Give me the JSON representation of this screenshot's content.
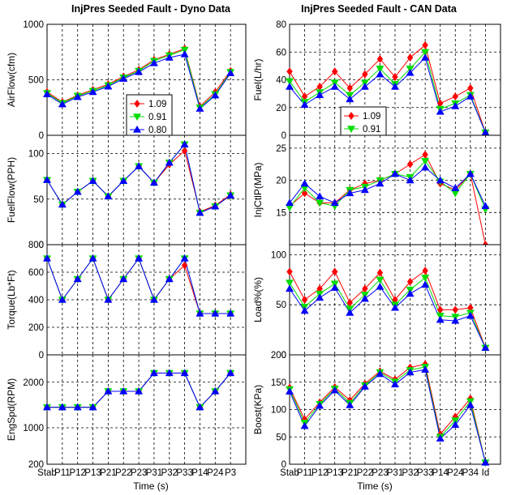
{
  "colors": {
    "red": "#ff0000",
    "green": "#00dd00",
    "blue": "#0000ff"
  },
  "chart_data": [
    {
      "type": "line",
      "id": "left-airflow",
      "title": "InjPres Seeded Fault - Dyno Data",
      "ylabel": "AirFlow(cfm)",
      "ylim": [
        0,
        1000
      ],
      "yticks": [
        "0",
        "500",
        "1000"
      ],
      "xticks": [],
      "xlabel": "",
      "grid": true,
      "n": 14,
      "legend": {
        "position": "middle-right",
        "entries": [
          "1.09",
          "0.91",
          "0.80"
        ]
      },
      "series": [
        {
          "name": "1.09",
          "marker": "diamond",
          "color": "#ff0000",
          "values": [
            390,
            300,
            360,
            410,
            460,
            530,
            590,
            680,
            730,
            780,
            260,
            390,
            580
          ]
        },
        {
          "name": "0.91",
          "marker": "triangle-down",
          "color": "#00dd00",
          "values": [
            380,
            290,
            355,
            400,
            450,
            520,
            580,
            670,
            720,
            770,
            250,
            370,
            570
          ]
        },
        {
          "name": "0.80",
          "marker": "triangle-up",
          "color": "#0000ff",
          "values": [
            370,
            280,
            345,
            390,
            440,
            510,
            570,
            650,
            700,
            730,
            240,
            360,
            560
          ]
        }
      ]
    },
    {
      "type": "line",
      "id": "left-fuelflow",
      "ylabel": "FuelFlow(PPH)",
      "ylim": [
        0,
        120
      ],
      "yticks": [
        "0",
        "50",
        "100"
      ],
      "xticks": [],
      "grid": true,
      "n": 14,
      "series": [
        {
          "name": "1.09",
          "marker": "diamond",
          "color": "#ff0000",
          "values": [
            71,
            44,
            58,
            70,
            53,
            70,
            86,
            68,
            88,
            103,
            36,
            43,
            55
          ]
        },
        {
          "name": "0.91",
          "marker": "triangle-down",
          "color": "#00dd00",
          "values": [
            71,
            44,
            58,
            70,
            53,
            70,
            86,
            68,
            90,
            110,
            35,
            42,
            54
          ]
        },
        {
          "name": "0.80",
          "marker": "triangle-up",
          "color": "#0000ff",
          "values": [
            71,
            44,
            58,
            70,
            53,
            70,
            86,
            68,
            90,
            110,
            35,
            42,
            54
          ]
        }
      ]
    },
    {
      "type": "line",
      "id": "left-torque",
      "ylabel": "Torque(Lb*Ft)",
      "ylim": [
        0,
        800
      ],
      "yticks": [
        "0",
        "200",
        "400",
        "600",
        "800"
      ],
      "xticks": [],
      "grid": true,
      "n": 14,
      "series": [
        {
          "name": "1.09",
          "marker": "diamond",
          "color": "#ff0000",
          "values": [
            700,
            400,
            550,
            700,
            400,
            550,
            700,
            400,
            550,
            650,
            300,
            300,
            300
          ]
        },
        {
          "name": "0.91",
          "marker": "triangle-down",
          "color": "#00dd00",
          "values": [
            700,
            400,
            550,
            700,
            400,
            550,
            700,
            400,
            550,
            700,
            300,
            300,
            300
          ]
        },
        {
          "name": "0.80",
          "marker": "triangle-up",
          "color": "#0000ff",
          "values": [
            700,
            400,
            550,
            700,
            400,
            550,
            700,
            400,
            550,
            700,
            300,
            300,
            300
          ]
        }
      ]
    },
    {
      "type": "line",
      "id": "left-engspd",
      "ylabel": "EngSpd(RPM)",
      "ylim": [
        200,
        2600
      ],
      "yticks": [
        "200",
        "1000",
        "2000"
      ],
      "xlabel": "Time (s)",
      "xticks": [
        "Stab",
        "P11",
        "P12",
        "P13",
        "P21",
        "P22",
        "P23",
        "P31",
        "P32",
        "P33",
        "P14",
        "P24",
        "P3"
      ],
      "grid": true,
      "n": 14,
      "series": [
        {
          "name": "1.09",
          "marker": "diamond",
          "color": "#ff0000",
          "values": [
            1450,
            1450,
            1450,
            1450,
            1800,
            1800,
            1800,
            2200,
            2200,
            2200,
            1450,
            1800,
            2200
          ]
        },
        {
          "name": "0.91",
          "marker": "triangle-down",
          "color": "#00dd00",
          "values": [
            1450,
            1450,
            1450,
            1450,
            1800,
            1800,
            1800,
            2200,
            2200,
            2200,
            1450,
            1800,
            2200
          ]
        },
        {
          "name": "0.80",
          "marker": "triangle-up",
          "color": "#0000ff",
          "values": [
            1450,
            1450,
            1450,
            1450,
            1800,
            1800,
            1800,
            2200,
            2200,
            2200,
            1450,
            1800,
            2200
          ]
        }
      ]
    },
    {
      "type": "line",
      "id": "right-fuel",
      "title": "InjPres Seeded Fault - CAN Data",
      "ylabel": "Fuel(L/hr)",
      "ylim": [
        0,
        80
      ],
      "yticks": [
        "0",
        "20",
        "40",
        "60",
        "80"
      ],
      "xticks": [],
      "grid": true,
      "n": 15,
      "legend": {
        "position": "middle-left",
        "entries": [
          "1.09",
          "0.91",
          "0.80"
        ]
      },
      "series": [
        {
          "name": "1.09",
          "marker": "diamond",
          "color": "#ff0000",
          "values": [
            46,
            28,
            35,
            46,
            34,
            44,
            55,
            42,
            56,
            65,
            23,
            28,
            34,
            2
          ]
        },
        {
          "name": "0.91",
          "marker": "triangle-down",
          "color": "#00dd00",
          "values": [
            39,
            24,
            31,
            38,
            29,
            38,
            48,
            37,
            48,
            60,
            19,
            23,
            29,
            2
          ]
        },
        {
          "name": "0.80",
          "marker": "triangle-up",
          "color": "#0000ff",
          "values": [
            35,
            22,
            29,
            35,
            26,
            35,
            44,
            35,
            45,
            56,
            17,
            21,
            28,
            2
          ]
        }
      ]
    },
    {
      "type": "line",
      "id": "right-injctl",
      "ylabel": "InjCtlP(MPa)",
      "ylim": [
        10,
        27
      ],
      "yticks": [
        "15",
        "20",
        "25"
      ],
      "xticks": [],
      "grid": true,
      "n": 15,
      "series": [
        {
          "name": "1.09",
          "marker": "diamond",
          "color": "#ff0000",
          "values": [
            16,
            18,
            16.5,
            16.5,
            18.5,
            19.5,
            20,
            21,
            22.5,
            24,
            19.5,
            18.5,
            21,
            10
          ]
        },
        {
          "name": "0.91",
          "marker": "triangle-down",
          "color": "#00dd00",
          "values": [
            15.8,
            18.8,
            16.5,
            16,
            18.5,
            19,
            20,
            21,
            20.5,
            23,
            19.8,
            18,
            21,
            15.5
          ]
        },
        {
          "name": "0.80",
          "marker": "triangle-up",
          "color": "#0000ff",
          "values": [
            16.5,
            19.5,
            17.5,
            16.5,
            18,
            18.5,
            19.5,
            21,
            20,
            22,
            20,
            18.8,
            21,
            16
          ]
        }
      ]
    },
    {
      "type": "line",
      "id": "right-load",
      "ylabel": "Load%(%)",
      "ylim": [
        0,
        110
      ],
      "yticks": [
        "0",
        "50",
        "100"
      ],
      "xticks": [],
      "grid": true,
      "n": 15,
      "series": [
        {
          "name": "1.09",
          "marker": "diamond",
          "color": "#ff0000",
          "values": [
            83,
            55,
            66,
            83,
            52,
            66,
            82,
            55,
            73,
            84,
            45,
            45,
            47,
            7
          ]
        },
        {
          "name": "0.91",
          "marker": "triangle-down",
          "color": "#00dd00",
          "values": [
            72,
            48,
            61,
            71,
            46,
            60,
            75,
            50,
            65,
            77,
            39,
            38,
            42,
            7
          ]
        },
        {
          "name": "0.80",
          "marker": "triangle-up",
          "color": "#0000ff",
          "values": [
            66,
            44,
            57,
            67,
            42,
            56,
            68,
            47,
            61,
            70,
            35,
            34,
            39,
            7
          ]
        }
      ]
    },
    {
      "type": "line",
      "id": "right-boost",
      "ylabel": "Boost(KPa)",
      "ylim": [
        0,
        200
      ],
      "yticks": [
        "0",
        "50",
        "100",
        "150",
        "200"
      ],
      "xlabel": "Time (s)",
      "xticks": [
        "Stab",
        "P11",
        "P12",
        "P13",
        "P21",
        "P22",
        "P23",
        "P31",
        "P32",
        "P33",
        "P14",
        "P24",
        "P34",
        "Id"
      ],
      "grid": true,
      "n": 15,
      "series": [
        {
          "name": "1.09",
          "marker": "diamond",
          "color": "#ff0000",
          "values": [
            140,
            82,
            113,
            141,
            117,
            147,
            170,
            155,
            177,
            183,
            55,
            87,
            120,
            3
          ]
        },
        {
          "name": "0.91",
          "marker": "triangle-down",
          "color": "#00dd00",
          "values": [
            137,
            76,
            110,
            138,
            112,
            144,
            168,
            151,
            172,
            178,
            50,
            80,
            115,
            3
          ]
        },
        {
          "name": "0.80",
          "marker": "triangle-up",
          "color": "#0000ff",
          "values": [
            133,
            70,
            107,
            135,
            108,
            142,
            165,
            146,
            168,
            173,
            47,
            72,
            108,
            3
          ]
        }
      ]
    }
  ]
}
